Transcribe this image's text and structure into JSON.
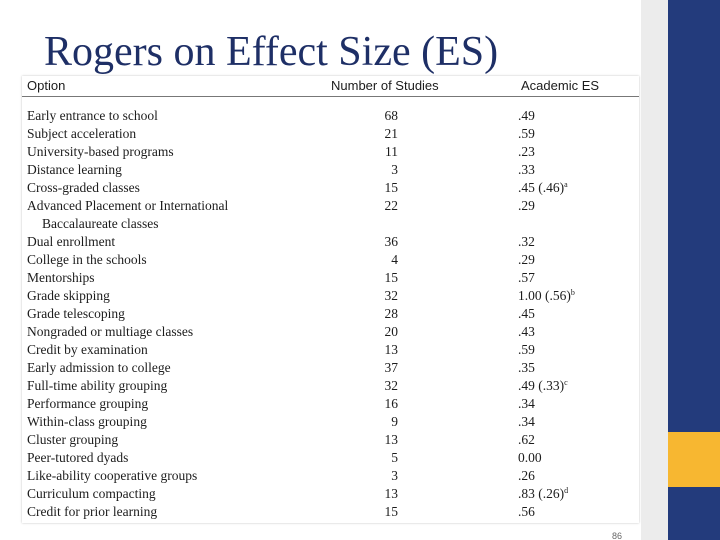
{
  "slide": {
    "title": "Rogers on Effect Size (ES)",
    "page_number": "86"
  },
  "colors": {
    "title": "#1e2f66",
    "side_bar": "#233b7c",
    "accent": "#f7b731",
    "side_strip": "#ececec"
  },
  "table": {
    "headers": {
      "option": "Option",
      "studies": "Number of Studies",
      "es": "Academic ES"
    },
    "rows": [
      {
        "option": "Early entrance to school",
        "studies": "68",
        "es": ".49",
        "note": ""
      },
      {
        "option": "Subject acceleration",
        "studies": "21",
        "es": ".59",
        "note": ""
      },
      {
        "option": "University-based programs",
        "studies": "11",
        "es": ".23",
        "note": ""
      },
      {
        "option": "Distance learning",
        "studies": "3",
        "es": ".33",
        "note": ""
      },
      {
        "option": "Cross-graded classes",
        "studies": "15",
        "es": ".45 (.46)",
        "note": "a"
      },
      {
        "option": "Advanced Placement or International",
        "option_cont": "Baccalaureate classes",
        "studies": "22",
        "es": ".29",
        "note": ""
      },
      {
        "option": "Dual enrollment",
        "studies": "36",
        "es": ".32",
        "note": ""
      },
      {
        "option": "College in the schools",
        "studies": "4",
        "es": ".29",
        "note": ""
      },
      {
        "option": "Mentorships",
        "studies": "15",
        "es": ".57",
        "note": ""
      },
      {
        "option": "Grade skipping",
        "studies": "32",
        "es": "1.00 (.56)",
        "note": "b"
      },
      {
        "option": "Grade telescoping",
        "studies": "28",
        "es": ".45",
        "note": ""
      },
      {
        "option": "Nongraded or multiage classes",
        "studies": "20",
        "es": ".43",
        "note": ""
      },
      {
        "option": "Credit by examination",
        "studies": "13",
        "es": ".59",
        "note": ""
      },
      {
        "option": "Early admission to college",
        "studies": "37",
        "es": ".35",
        "note": ""
      },
      {
        "option": "Full-time ability grouping",
        "studies": "32",
        "es": ".49 (.33)",
        "note": "c"
      },
      {
        "option": "Performance grouping",
        "studies": "16",
        "es": ".34",
        "note": ""
      },
      {
        "option": "Within-class grouping",
        "studies": "9",
        "es": ".34",
        "note": ""
      },
      {
        "option": "Cluster grouping",
        "studies": "13",
        "es": ".62",
        "note": ""
      },
      {
        "option": "Peer-tutored dyads",
        "studies": "5",
        "es": "0.00",
        "note": ""
      },
      {
        "option": "Like-ability cooperative groups",
        "studies": "3",
        "es": ".26",
        "note": ""
      },
      {
        "option": "Curriculum compacting",
        "studies": "13",
        "es": ".83 (.26)",
        "note": "d"
      },
      {
        "option": "Credit for prior learning",
        "studies": "15",
        "es": ".56",
        "note": ""
      }
    ]
  }
}
